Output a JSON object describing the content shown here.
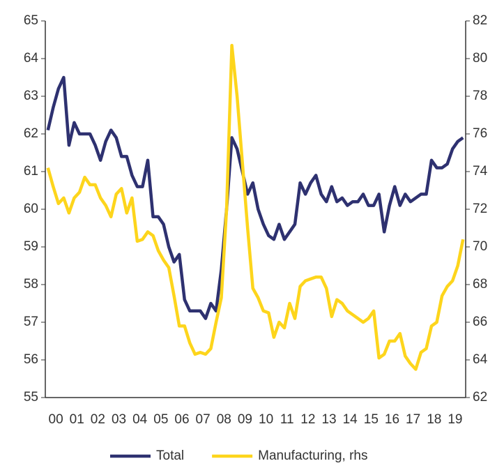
{
  "chart_data": {
    "type": "line",
    "categories": [
      "00",
      null,
      null,
      null,
      "01",
      null,
      null,
      null,
      "02",
      null,
      null,
      null,
      "03",
      null,
      null,
      null,
      "04",
      null,
      null,
      null,
      "05",
      null,
      null,
      null,
      "06",
      null,
      null,
      null,
      "07",
      null,
      null,
      null,
      "08",
      null,
      null,
      null,
      "09",
      null,
      null,
      null,
      "10",
      null,
      null,
      null,
      "11",
      null,
      null,
      null,
      "12",
      null,
      null,
      null,
      "13",
      null,
      null,
      null,
      "14",
      null,
      null,
      null,
      "15",
      null,
      null,
      null,
      "16",
      null,
      null,
      null,
      "17",
      null,
      null,
      null,
      "18",
      null,
      null,
      null,
      "19",
      null,
      null,
      null
    ],
    "series": [
      {
        "name": "Total",
        "color": "#2e3170",
        "axis": "y",
        "values": [
          62.1,
          62.7,
          63.2,
          63.5,
          61.7,
          62.3,
          62.0,
          62.0,
          62.0,
          61.7,
          61.3,
          61.8,
          62.1,
          61.9,
          61.4,
          61.4,
          60.9,
          60.6,
          60.6,
          61.3,
          59.8,
          59.8,
          59.6,
          59.0,
          58.6,
          58.8,
          57.6,
          57.3,
          57.3,
          57.3,
          57.1,
          57.5,
          57.3,
          58.4,
          60.0,
          61.9,
          61.6,
          61.0,
          60.4,
          60.7,
          60.0,
          59.6,
          59.3,
          59.2,
          59.6,
          59.2,
          59.4,
          59.6,
          60.7,
          60.4,
          60.7,
          60.9,
          60.4,
          60.2,
          60.6,
          60.2,
          60.3,
          60.1,
          60.2,
          60.2,
          60.4,
          60.1,
          60.1,
          60.4,
          59.4,
          60.1,
          60.6,
          60.1,
          60.4,
          60.2,
          60.3,
          60.4,
          60.4,
          61.3,
          61.1,
          61.1,
          61.2,
          61.6,
          61.8,
          61.9
        ]
      },
      {
        "name": "Manufacturing, rhs",
        "color": "#fdd51c",
        "axis": "y2",
        "values": [
          74.2,
          73.2,
          72.3,
          72.6,
          71.8,
          72.6,
          72.9,
          73.7,
          73.3,
          73.3,
          72.6,
          72.2,
          71.6,
          72.8,
          73.1,
          71.8,
          72.6,
          70.3,
          70.4,
          70.8,
          70.6,
          69.8,
          69.3,
          68.9,
          67.4,
          65.8,
          65.8,
          64.9,
          64.3,
          64.4,
          64.3,
          64.6,
          66.0,
          67.3,
          72.0,
          80.7,
          78.0,
          74.5,
          71.0,
          67.8,
          67.3,
          66.6,
          66.5,
          65.2,
          66.0,
          65.7,
          67.0,
          66.2,
          67.9,
          68.2,
          68.3,
          68.4,
          68.4,
          67.8,
          66.3,
          67.2,
          67.0,
          66.6,
          66.4,
          66.2,
          66.0,
          66.2,
          66.6,
          64.1,
          64.3,
          65.0,
          65.0,
          65.4,
          64.2,
          63.8,
          63.5,
          64.4,
          64.6,
          65.8,
          66.0,
          67.4,
          67.9,
          68.2,
          69.0,
          70.4
        ]
      }
    ],
    "ylim": [
      55,
      65
    ],
    "yticks": [
      55,
      56,
      57,
      58,
      59,
      60,
      61,
      62,
      63,
      64,
      65
    ],
    "y2lim": [
      62,
      82
    ],
    "y2ticks": [
      62,
      64,
      66,
      68,
      70,
      72,
      74,
      76,
      78,
      80,
      82
    ],
    "legend": "bottom"
  }
}
